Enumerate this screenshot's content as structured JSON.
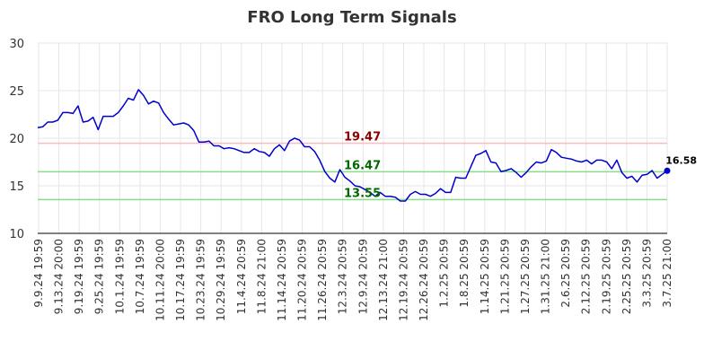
{
  "chart_data": {
    "type": "line",
    "title": "FRO Long Term Signals",
    "xlabel": "",
    "ylabel": "",
    "ylim": [
      10,
      30
    ],
    "yticks": [
      10,
      15,
      20,
      25,
      30
    ],
    "grid": true,
    "legend": "none",
    "x_tick_labels": [
      "9.9.24 19:59",
      "9.13.24 20:00",
      "9.19.24 19:59",
      "9.25.24 19:59",
      "10.1.24 19:59",
      "10.7.24 19:59",
      "10.11.24 20:00",
      "10.17.24 19:59",
      "10.23.24 19:59",
      "10.29.24 19:59",
      "11.4.24 20:59",
      "11.8.24 21:00",
      "11.14.24 20:59",
      "11.20.24 20:59",
      "11.26.24 20:59",
      "12.3.24 20:59",
      "12.9.24 20:59",
      "12.13.24 21:00",
      "12.19.24 20:59",
      "12.26.24 20:59",
      "1.2.25 20:59",
      "1.8.25 20:59",
      "1.14.25 20:59",
      "1.21.25 20:59",
      "1.27.25 20:59",
      "1.31.25 21:00",
      "2.6.25 20:59",
      "2.12.25 20:59",
      "2.19.25 20:59",
      "2.25.25 20:59",
      "3.3.25 20:59",
      "3.7.25 21:00"
    ],
    "series": [
      {
        "color": "#0000cc",
        "values": [
          21.1,
          21.2,
          21.7,
          21.7,
          21.9,
          22.7,
          22.7,
          22.6,
          23.4,
          21.7,
          21.8,
          22.2,
          20.9,
          22.3,
          22.3,
          22.3,
          22.7,
          23.4,
          24.2,
          24.0,
          25.1,
          24.5,
          23.6,
          23.9,
          23.7,
          22.7,
          22.0,
          21.4,
          21.5,
          21.6,
          21.4,
          20.8,
          19.6,
          19.6,
          19.7,
          19.2,
          19.2,
          18.9,
          19.0,
          18.9,
          18.7,
          18.5,
          18.5,
          18.9,
          18.6,
          18.5,
          18.1,
          18.9,
          19.3,
          18.7,
          19.7,
          20.0,
          19.8,
          19.1,
          19.1,
          18.6,
          17.7,
          16.5,
          15.8,
          15.4,
          16.7,
          15.9,
          15.5,
          15.0,
          14.9,
          14.6,
          14.3,
          13.9,
          14.3,
          13.9,
          13.9,
          13.8,
          13.4,
          13.4,
          14.1,
          14.4,
          14.1,
          14.1,
          13.9,
          14.2,
          14.7,
          14.3,
          14.3,
          15.9,
          15.8,
          15.8,
          17.0,
          18.2,
          18.4,
          18.7,
          17.5,
          17.4,
          16.5,
          16.6,
          16.8,
          16.4,
          15.9,
          16.4,
          17.0,
          17.5,
          17.4,
          17.6,
          18.8,
          18.5,
          18.0,
          17.9,
          17.8,
          17.6,
          17.5,
          17.7,
          17.3,
          17.7,
          17.7,
          17.5,
          16.8,
          17.7,
          16.4,
          15.8,
          16.0,
          15.4,
          16.1,
          16.2,
          16.6,
          15.8,
          16.2,
          16.58
        ]
      }
    ],
    "levels": [
      {
        "value": 19.47,
        "label": "19.47",
        "line_color": "#ffbbbb",
        "text_color": "#880000"
      },
      {
        "value": 16.47,
        "label": "16.47",
        "line_color": "#88dd88",
        "text_color": "#006600"
      },
      {
        "value": 13.55,
        "label": "13.55",
        "line_color": "#88dd88",
        "text_color": "#006600"
      }
    ],
    "last_value": {
      "value": 16.58,
      "label": "16.58",
      "marker_color": "#0000cc"
    }
  }
}
